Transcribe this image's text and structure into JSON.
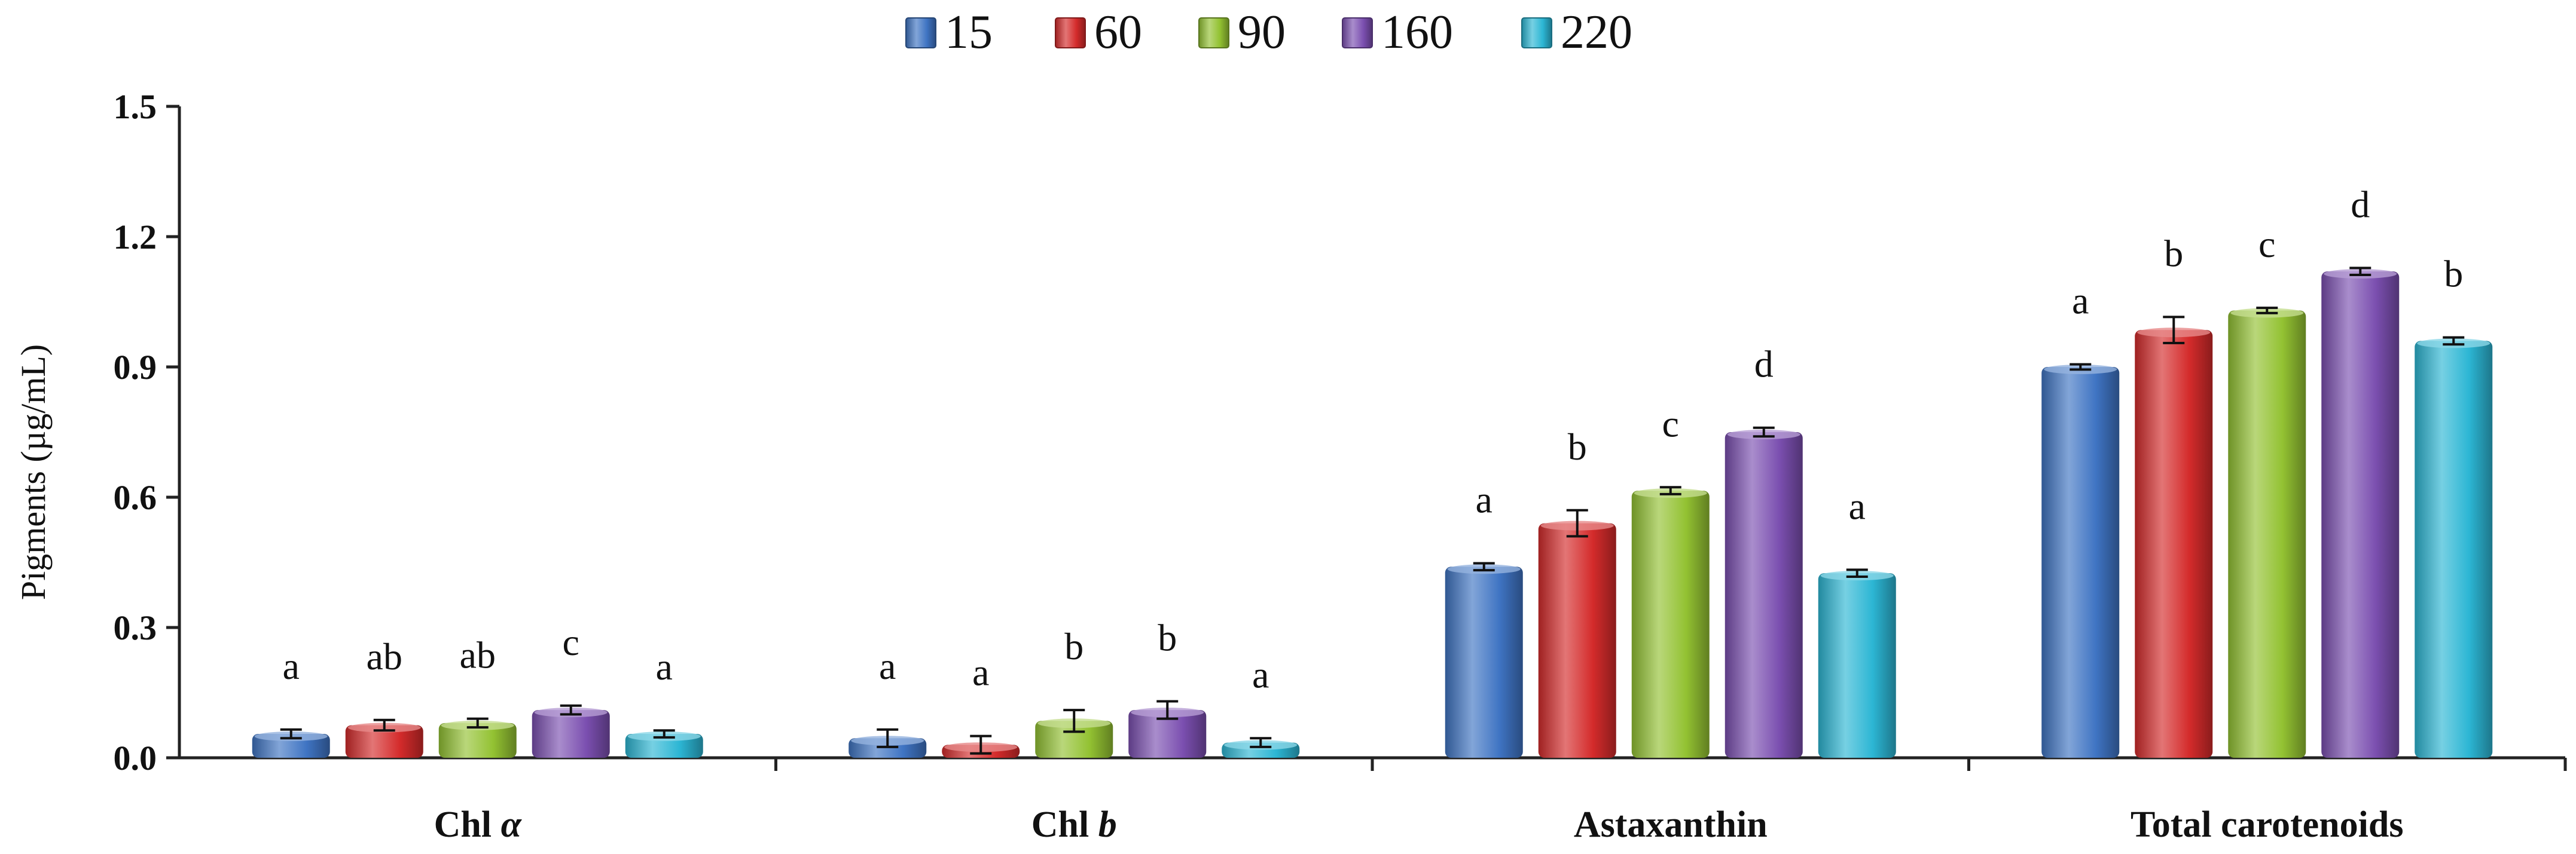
{
  "chart_data": {
    "type": "bar",
    "title": "",
    "xlabel": "",
    "ylabel": "Pigments (µg/mL)",
    "ylim": [
      0,
      1.5
    ],
    "yticks": [
      "0.0",
      "0.3",
      "0.6",
      "0.9",
      "1.2",
      "1.5"
    ],
    "grid": false,
    "legend_position": "top-center",
    "categories": [
      {
        "label": "Chl ",
        "symbol": "α"
      },
      {
        "label": "Chl ",
        "symbol": "b"
      },
      {
        "label": "Astaxanthin",
        "symbol": ""
      },
      {
        "label": "Total carotenoids",
        "symbol": ""
      }
    ],
    "series": [
      {
        "name": "15",
        "color": "#3f74c3",
        "values": [
          0.055,
          0.045,
          0.44,
          0.9
        ],
        "errors": [
          0.01,
          0.02,
          0.008,
          0.006
        ],
        "sig": [
          "a",
          "a",
          "a",
          "a"
        ]
      },
      {
        "name": "60",
        "color": "#d42b2b",
        "values": [
          0.075,
          0.03,
          0.54,
          0.985
        ],
        "errors": [
          0.012,
          0.02,
          0.03,
          0.03
        ],
        "sig": [
          "ab",
          "a",
          "b",
          "b"
        ]
      },
      {
        "name": "90",
        "color": "#93c232",
        "values": [
          0.08,
          0.085,
          0.615,
          1.03
        ],
        "errors": [
          0.01,
          0.025,
          0.008,
          0.006
        ],
        "sig": [
          "ab",
          "b",
          "c",
          "c"
        ]
      },
      {
        "name": "160",
        "color": "#7b4fb0",
        "values": [
          0.11,
          0.11,
          0.75,
          1.12
        ],
        "errors": [
          0.01,
          0.02,
          0.01,
          0.008
        ],
        "sig": [
          "c",
          "b",
          "d",
          "d"
        ]
      },
      {
        "name": "220",
        "color": "#2cb6d4",
        "values": [
          0.055,
          0.035,
          0.425,
          0.96
        ],
        "errors": [
          0.008,
          0.01,
          0.008,
          0.008
        ],
        "sig": [
          "a",
          "a",
          "a",
          "b"
        ]
      }
    ]
  }
}
